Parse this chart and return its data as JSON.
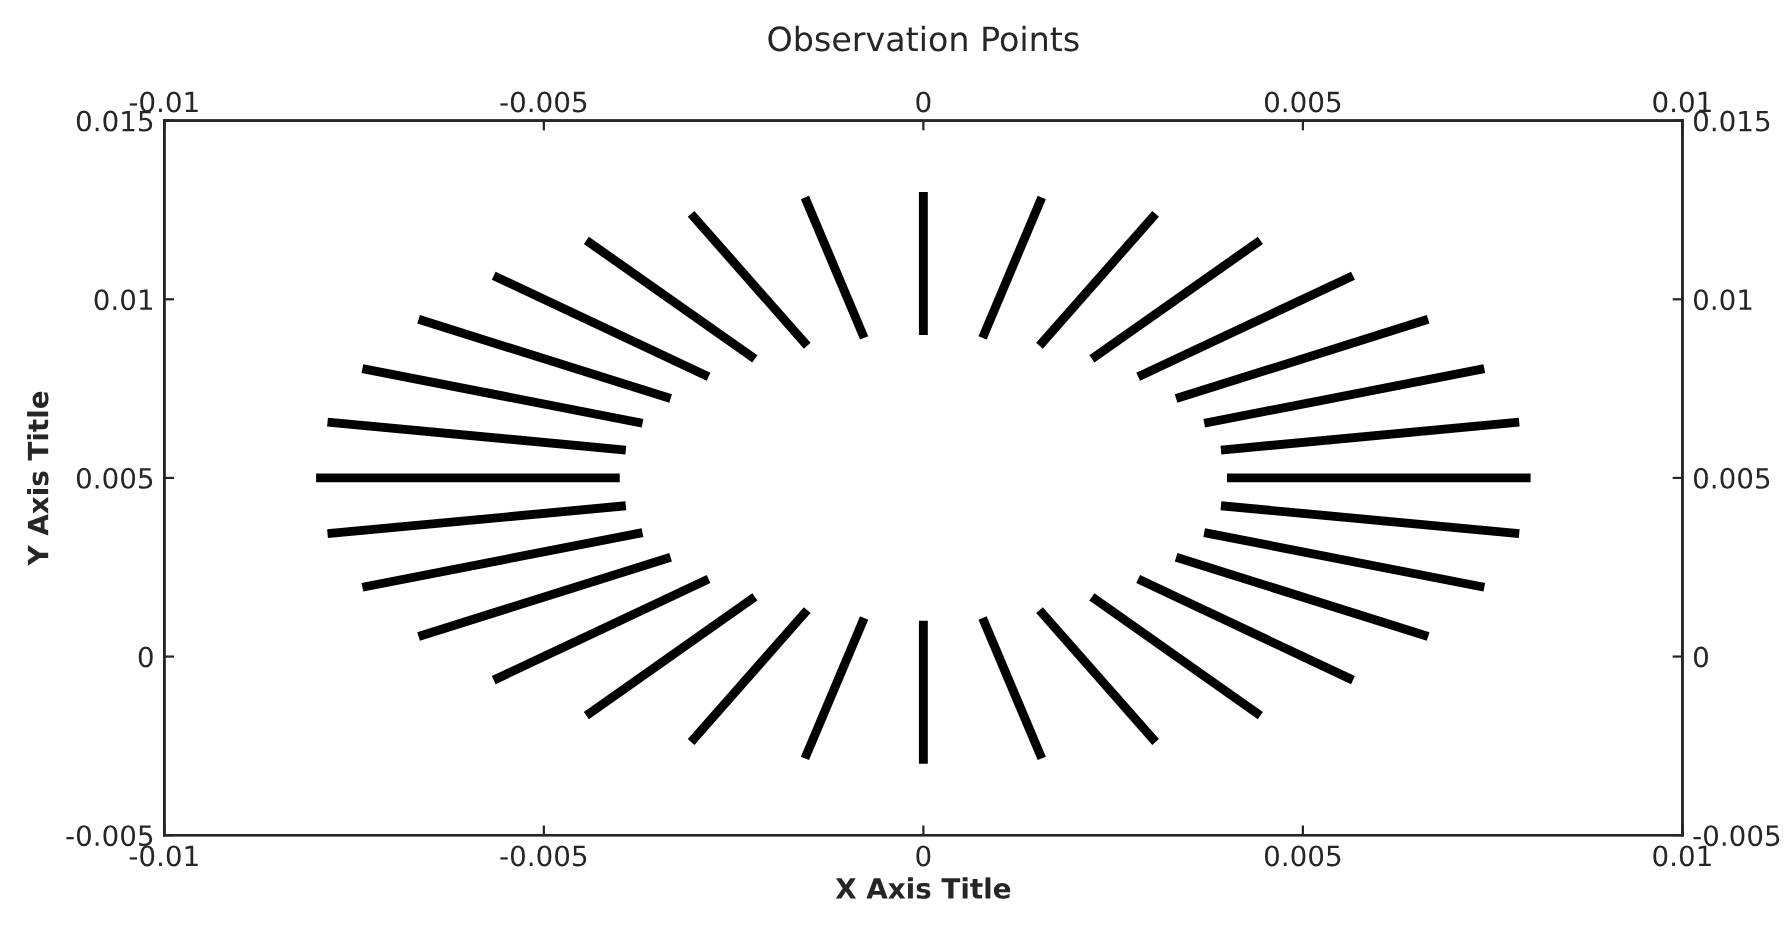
{
  "chart_data": {
    "type": "line",
    "title": "Observation Points",
    "xlabel": "X Axis Title",
    "ylabel": "Y Axis Title",
    "xlim": [
      -0.01,
      0.01
    ],
    "xticks": [
      -0.01,
      -0.005,
      0,
      0.005,
      0.01
    ],
    "x2lim": [
      -0.01,
      0.01
    ],
    "x2ticks": [
      -0.01,
      -0.005,
      0,
      0.005,
      0.01
    ],
    "ylim": [
      -0.005,
      0.015
    ],
    "yticks": [
      -0.005,
      0,
      0.005,
      0.01,
      0.015
    ],
    "y2lim": [
      -0.005,
      0.015
    ],
    "y2ticks": [
      -0.005,
      0,
      0.005,
      0.01,
      0.015
    ],
    "grid": false,
    "legend": false,
    "marker": "none",
    "line_style": "solid",
    "series": [
      {
        "color": "#000000",
        "x": [
          0.004,
          0.008
        ],
        "values": [
          0.005,
          0.005
        ]
      },
      {
        "color": "#000000",
        "x": [
          0.00392,
          0.00785
        ],
        "values": [
          0.00578,
          0.00656
        ]
      },
      {
        "color": "#000000",
        "x": [
          0.0037,
          0.00739
        ],
        "values": [
          0.00653,
          0.00806
        ]
      },
      {
        "color": "#000000",
        "x": [
          0.00333,
          0.00665
        ],
        "values": [
          0.00722,
          0.00944
        ]
      },
      {
        "color": "#000000",
        "x": [
          0.00283,
          0.00566
        ],
        "values": [
          0.00783,
          0.01066
        ]
      },
      {
        "color": "#000000",
        "x": [
          0.00222,
          0.00444
        ],
        "values": [
          0.00833,
          0.01165
        ]
      },
      {
        "color": "#000000",
        "x": [
          0.00153,
          0.00306
        ],
        "values": [
          0.0087,
          0.01239
        ]
      },
      {
        "color": "#000000",
        "x": [
          0.00078,
          0.00156
        ],
        "values": [
          0.00892,
          0.01285
        ]
      },
      {
        "color": "#000000",
        "x": [
          0,
          0
        ],
        "values": [
          0.009,
          0.013
        ]
      },
      {
        "color": "#000000",
        "x": [
          -0.00078,
          -0.00156
        ],
        "values": [
          0.00892,
          0.01285
        ]
      },
      {
        "color": "#000000",
        "x": [
          -0.00153,
          -0.00306
        ],
        "values": [
          0.0087,
          0.01239
        ]
      },
      {
        "color": "#000000",
        "x": [
          -0.00222,
          -0.00444
        ],
        "values": [
          0.00833,
          0.01165
        ]
      },
      {
        "color": "#000000",
        "x": [
          -0.00283,
          -0.00566
        ],
        "values": [
          0.00783,
          0.01066
        ]
      },
      {
        "color": "#000000",
        "x": [
          -0.00333,
          -0.00665
        ],
        "values": [
          0.00722,
          0.00944
        ]
      },
      {
        "color": "#000000",
        "x": [
          -0.0037,
          -0.00739
        ],
        "values": [
          0.00653,
          0.00806
        ]
      },
      {
        "color": "#000000",
        "x": [
          -0.00392,
          -0.00785
        ],
        "values": [
          0.00578,
          0.00656
        ]
      },
      {
        "color": "#000000",
        "x": [
          -0.004,
          -0.008
        ],
        "values": [
          0.005,
          0.005
        ]
      },
      {
        "color": "#000000",
        "x": [
          -0.00392,
          -0.00785
        ],
        "values": [
          0.00422,
          0.00344
        ]
      },
      {
        "color": "#000000",
        "x": [
          -0.0037,
          -0.00739
        ],
        "values": [
          0.00347,
          0.00194
        ]
      },
      {
        "color": "#000000",
        "x": [
          -0.00333,
          -0.00665
        ],
        "values": [
          0.00278,
          0.00056
        ]
      },
      {
        "color": "#000000",
        "x": [
          -0.00283,
          -0.00566
        ],
        "values": [
          0.00217,
          -0.00066
        ]
      },
      {
        "color": "#000000",
        "x": [
          -0.00222,
          -0.00444
        ],
        "values": [
          0.00167,
          -0.00165
        ]
      },
      {
        "color": "#000000",
        "x": [
          -0.00153,
          -0.00306
        ],
        "values": [
          0.0013,
          -0.00239
        ]
      },
      {
        "color": "#000000",
        "x": [
          -0.00078,
          -0.00156
        ],
        "values": [
          0.00108,
          -0.00285
        ]
      },
      {
        "color": "#000000",
        "x": [
          0,
          0
        ],
        "values": [
          0.001,
          -0.003
        ]
      },
      {
        "color": "#000000",
        "x": [
          0.00078,
          0.00156
        ],
        "values": [
          0.00108,
          -0.00285
        ]
      },
      {
        "color": "#000000",
        "x": [
          0.00153,
          0.00306
        ],
        "values": [
          0.0013,
          -0.00239
        ]
      },
      {
        "color": "#000000",
        "x": [
          0.00222,
          0.00444
        ],
        "values": [
          0.00167,
          -0.00165
        ]
      },
      {
        "color": "#000000",
        "x": [
          0.00283,
          0.00566
        ],
        "values": [
          0.00217,
          -0.00066
        ]
      },
      {
        "color": "#000000",
        "x": [
          0.00333,
          0.00665
        ],
        "values": [
          0.00278,
          0.00056
        ]
      },
      {
        "color": "#000000",
        "x": [
          0.0037,
          0.00739
        ],
        "values": [
          0.00347,
          0.00194
        ]
      },
      {
        "color": "#000000",
        "x": [
          0.00392,
          0.00785
        ],
        "values": [
          0.00422,
          0.00344
        ]
      }
    ]
  }
}
